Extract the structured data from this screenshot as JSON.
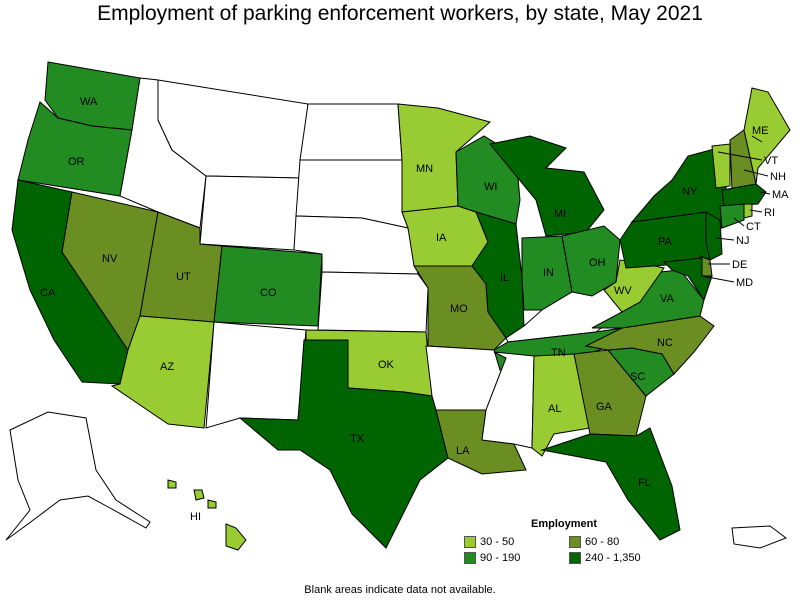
{
  "title": "Employment of parking enforcement workers, by state, May 2021",
  "note": "Blank areas indicate data not available.",
  "legend": {
    "title": "Employment",
    "items": [
      {
        "label": "30 - 50",
        "color": "#99cc33"
      },
      {
        "label": "60 - 80",
        "color": "#6b8e23"
      },
      {
        "label": "90 - 190",
        "color": "#228b22"
      },
      {
        "label": "240 - 1,350",
        "color": "#006400"
      }
    ]
  },
  "colors": {
    "no_data": "#ffffff",
    "border": "#000000"
  },
  "states": {
    "WA": {
      "label": "WA",
      "class": "90 - 190"
    },
    "OR": {
      "label": "OR",
      "class": "90 - 190"
    },
    "CA": {
      "label": "CA",
      "class": "240 - 1,350"
    },
    "NV": {
      "label": "NV",
      "class": "60 - 80"
    },
    "UT": {
      "label": "UT",
      "class": "60 - 80"
    },
    "AZ": {
      "label": "AZ",
      "class": "30 - 50"
    },
    "CO": {
      "label": "CO",
      "class": "90 - 190"
    },
    "TX": {
      "label": "TX",
      "class": "240 - 1,350"
    },
    "OK": {
      "label": "OK",
      "class": "30 - 50"
    },
    "MN": {
      "label": "MN",
      "class": "30 - 50"
    },
    "IA": {
      "label": "IA",
      "class": "30 - 50"
    },
    "MO": {
      "label": "MO",
      "class": "60 - 80"
    },
    "LA": {
      "label": "LA",
      "class": "60 - 80"
    },
    "WI": {
      "label": "WI",
      "class": "90 - 190"
    },
    "IL": {
      "label": "IL",
      "class": "240 - 1,350"
    },
    "MI": {
      "label": "MI",
      "class": "240 - 1,350"
    },
    "IN": {
      "label": "IN",
      "class": "90 - 190"
    },
    "OH": {
      "label": "OH",
      "class": "90 - 190"
    },
    "TN": {
      "label": "TN",
      "class": "90 - 190"
    },
    "AL": {
      "label": "AL",
      "class": "30 - 50"
    },
    "GA": {
      "label": "GA",
      "class": "60 - 80"
    },
    "FL": {
      "label": "FL",
      "class": "240 - 1,350"
    },
    "SC": {
      "label": "SC",
      "class": "90 - 190"
    },
    "NC": {
      "label": "NC",
      "class": "60 - 80"
    },
    "VA": {
      "label": "VA",
      "class": "90 - 190"
    },
    "WV": {
      "label": "WV",
      "class": "30 - 50"
    },
    "PA": {
      "label": "PA",
      "class": "240 - 1,350"
    },
    "NY": {
      "label": "NY",
      "class": "240 - 1,350"
    },
    "NJ": {
      "label": "NJ",
      "class": "240 - 1,350"
    },
    "DE": {
      "label": "DE",
      "class": "60 - 80"
    },
    "MD": {
      "label": "MD",
      "class": "240 - 1,350"
    },
    "CT": {
      "label": "CT",
      "class": "90 - 190"
    },
    "RI": {
      "label": "RI",
      "class": "30 - 50"
    },
    "MA": {
      "label": "MA",
      "class": "240 - 1,350"
    },
    "NH": {
      "label": "NH",
      "class": "60 - 80"
    },
    "VT": {
      "label": "VT",
      "class": "30 - 50"
    },
    "ME": {
      "label": "ME",
      "class": "30 - 50"
    },
    "HI": {
      "label": "HI",
      "class": "30 - 50"
    },
    "MT": {
      "label": "",
      "class": ""
    },
    "ID": {
      "label": "",
      "class": ""
    },
    "WY": {
      "label": "",
      "class": ""
    },
    "ND": {
      "label": "",
      "class": ""
    },
    "SD": {
      "label": "",
      "class": ""
    },
    "NE": {
      "label": "",
      "class": ""
    },
    "KS": {
      "label": "",
      "class": ""
    },
    "NM": {
      "label": "",
      "class": ""
    },
    "AR": {
      "label": "",
      "class": ""
    },
    "MS": {
      "label": "",
      "class": ""
    },
    "KY": {
      "label": "",
      "class": ""
    },
    "AK": {
      "label": "",
      "class": ""
    },
    "PR": {
      "label": "",
      "class": ""
    }
  }
}
